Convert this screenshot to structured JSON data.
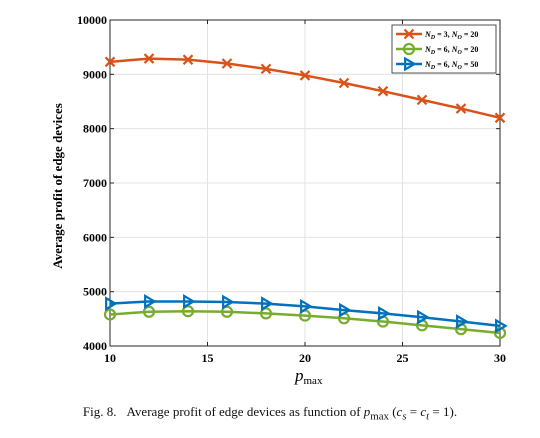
{
  "chart_data": {
    "type": "line",
    "xlabel_main": "p",
    "xlabel_sub": "max",
    "ylabel": "Average profit of edge devices",
    "xlim": [
      10,
      30
    ],
    "ylim": [
      4000,
      10000
    ],
    "xticks": [
      10,
      15,
      20,
      25,
      30
    ],
    "yticks": [
      4000,
      5000,
      6000,
      7000,
      8000,
      9000,
      10000
    ],
    "grid": true,
    "legend_position": "top-right",
    "x": [
      10,
      12,
      14,
      16,
      18,
      20,
      22,
      24,
      26,
      28,
      30
    ],
    "series": [
      {
        "name": "N_D = 3, N_O = 20",
        "name_parts": [
          "N",
          "D",
          " = 3, ",
          "N",
          "O",
          " = 20"
        ],
        "color": "#d95319",
        "marker": "x",
        "values": [
          9230,
          9290,
          9270,
          9200,
          9100,
          8980,
          8840,
          8690,
          8530,
          8370,
          8200
        ]
      },
      {
        "name": "N_D = 6, N_O = 20",
        "name_parts": [
          "N",
          "D",
          " = 6, ",
          "N",
          "O",
          " = 20"
        ],
        "color": "#77ac30",
        "marker": "circle",
        "values": [
          4580,
          4630,
          4640,
          4630,
          4600,
          4560,
          4510,
          4450,
          4380,
          4310,
          4240
        ]
      },
      {
        "name": "N_D = 6, N_O = 50",
        "name_parts": [
          "N",
          "D",
          " = 6, ",
          "N",
          "O",
          " = 50"
        ],
        "color": "#0072bd",
        "marker": "triangle-right",
        "values": [
          4780,
          4820,
          4820,
          4810,
          4780,
          4730,
          4660,
          4600,
          4530,
          4450,
          4370
        ]
      }
    ]
  },
  "caption": {
    "label": "Fig. 8.",
    "text_before": "Average profit of edge devices as function of ",
    "p": "p",
    "p_sub": "max",
    "paren_open": " (",
    "c1": "c",
    "c1_sub": "s",
    "eq1": " = ",
    "c2": "c",
    "c2_sub": "t",
    "text_after": " = 1)."
  }
}
